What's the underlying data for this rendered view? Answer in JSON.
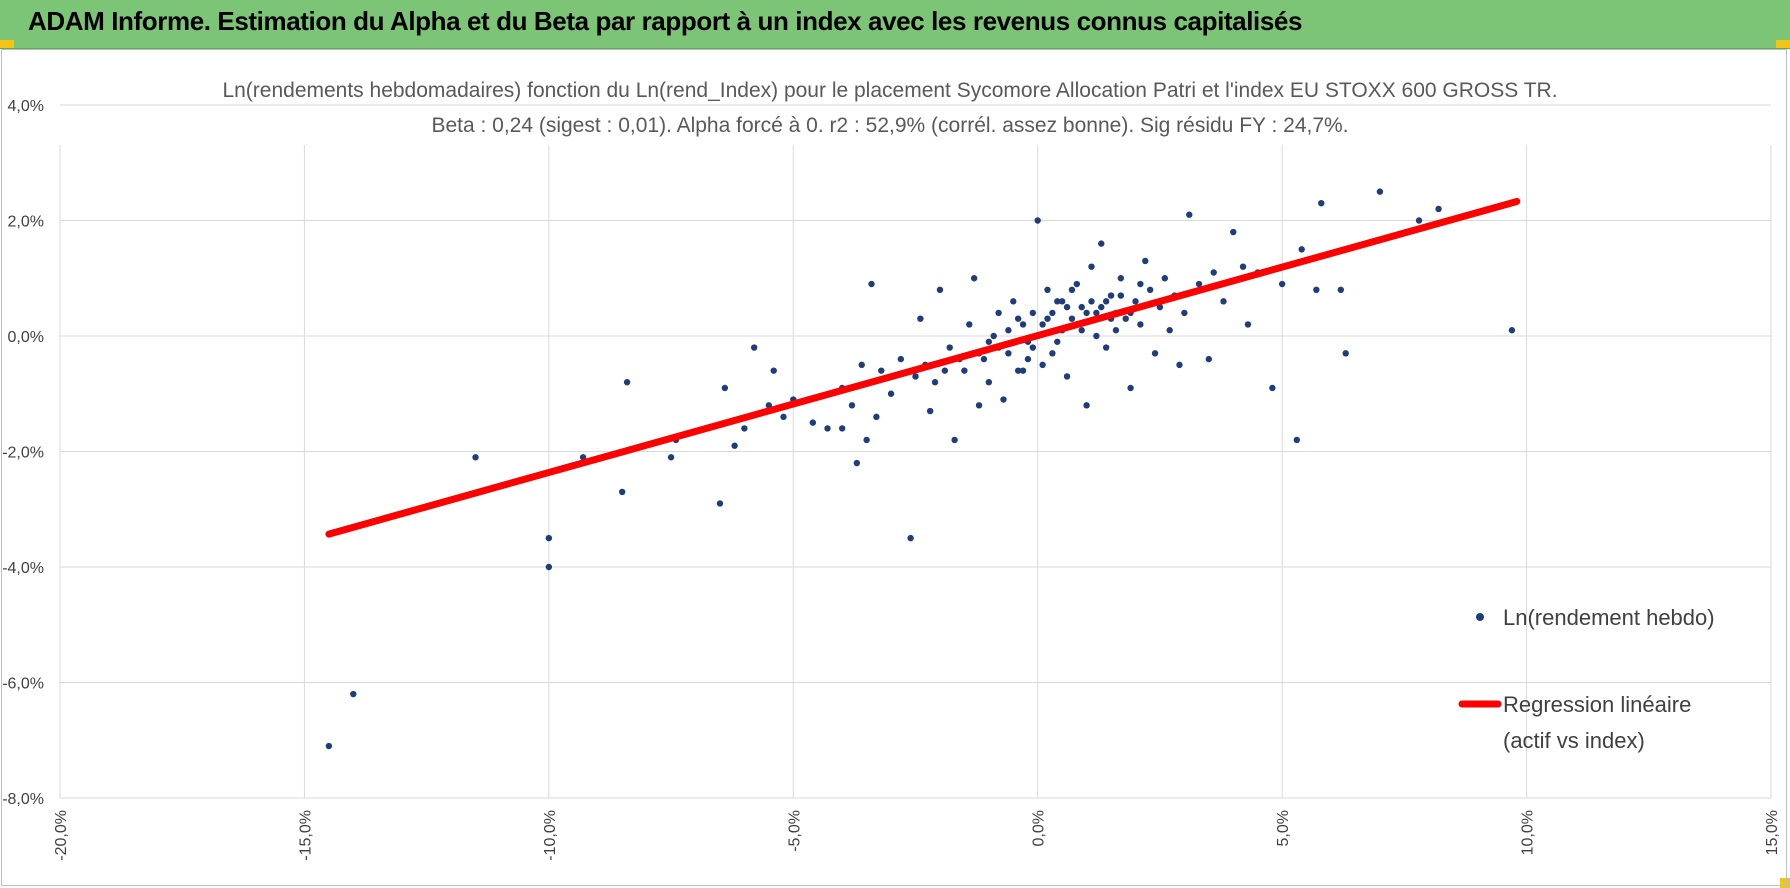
{
  "header": {
    "title": "ADAM Informe. Estimation du Alpha et du Beta par rapport à un index avec les revenus connus capitalisés"
  },
  "colors": {
    "banner": "#7cc576",
    "accent": "#f2c416",
    "points": "#1f3d7a",
    "regression": "#ff0000",
    "grid": "#d9d9d9"
  },
  "chart_data": {
    "type": "scatter",
    "title_line1": "Ln(rendements hebdomadaires) fonction du Ln(rend_Index) pour le placement Sycomore Allocation Patri et l'index EU STOXX 600 GROSS TR.",
    "title_line2": "Beta : 0,24 (sigest : 0,01). Alpha forcé à 0. r2 : 52,9% (corrél. assez bonne). Sig résidu FY : 24,7%.",
    "xlim": [
      -0.2,
      0.15
    ],
    "ylim": [
      -0.08,
      0.04
    ],
    "grid": "both",
    "legend_position": "right",
    "x_ticks": [
      "-20,0%",
      "-15,0%",
      "-10,0%",
      "-5,0%",
      "0,0%",
      "5,0%",
      "10,0%",
      "15,0%"
    ],
    "y_ticks": [
      "4,0%",
      "2,0%",
      "0,0%",
      "-2,0%",
      "-4,0%",
      "-6,0%",
      "-8,0%"
    ],
    "series": [
      {
        "name": "Ln(rendement hebdo)",
        "kind": "scatter",
        "points": [
          [
            -0.145,
            -0.071
          ],
          [
            -0.14,
            -0.062
          ],
          [
            -0.115,
            -0.021
          ],
          [
            -0.1,
            -0.035
          ],
          [
            -0.1,
            -0.04
          ],
          [
            -0.093,
            -0.021
          ],
          [
            -0.085,
            -0.027
          ],
          [
            -0.084,
            -0.008
          ],
          [
            -0.075,
            -0.021
          ],
          [
            -0.074,
            -0.018
          ],
          [
            -0.065,
            -0.029
          ],
          [
            -0.064,
            -0.009
          ],
          [
            -0.062,
            -0.019
          ],
          [
            -0.06,
            -0.016
          ],
          [
            -0.058,
            -0.002
          ],
          [
            -0.055,
            -0.012
          ],
          [
            -0.054,
            -0.006
          ],
          [
            -0.052,
            -0.014
          ],
          [
            -0.05,
            -0.011
          ],
          [
            -0.046,
            -0.015
          ],
          [
            -0.043,
            -0.016
          ],
          [
            -0.04,
            -0.016
          ],
          [
            -0.04,
            -0.009
          ],
          [
            -0.038,
            -0.012
          ],
          [
            -0.037,
            -0.022
          ],
          [
            -0.036,
            -0.005
          ],
          [
            -0.035,
            -0.018
          ],
          [
            -0.034,
            0.009
          ],
          [
            -0.033,
            -0.014
          ],
          [
            -0.032,
            -0.006
          ],
          [
            -0.03,
            -0.01
          ],
          [
            -0.028,
            -0.004
          ],
          [
            -0.026,
            -0.035
          ],
          [
            -0.025,
            -0.007
          ],
          [
            -0.024,
            0.003
          ],
          [
            -0.022,
            -0.013
          ],
          [
            -0.021,
            -0.008
          ],
          [
            -0.02,
            0.008
          ],
          [
            -0.018,
            -0.002
          ],
          [
            -0.017,
            -0.018
          ],
          [
            -0.015,
            -0.006
          ],
          [
            -0.014,
            0.002
          ],
          [
            -0.013,
            0.01
          ],
          [
            -0.012,
            -0.012
          ],
          [
            -0.011,
            -0.004
          ],
          [
            -0.01,
            -0.008
          ],
          [
            -0.009,
            0.0
          ],
          [
            -0.008,
            0.004
          ],
          [
            -0.007,
            -0.011
          ],
          [
            -0.006,
            -0.003
          ],
          [
            -0.005,
            0.006
          ],
          [
            -0.004,
            -0.006
          ],
          [
            -0.003,
            0.002
          ],
          [
            -0.002,
            -0.001
          ],
          [
            -0.001,
            0.004
          ],
          [
            0.0,
            0.0
          ],
          [
            0.0,
            0.02
          ],
          [
            0.001,
            -0.005
          ],
          [
            0.002,
            0.003
          ],
          [
            0.003,
            -0.003
          ],
          [
            0.004,
            0.006
          ],
          [
            0.005,
            0.001
          ],
          [
            0.006,
            -0.007
          ],
          [
            0.007,
            0.008
          ],
          [
            0.008,
            0.002
          ],
          [
            0.009,
            0.005
          ],
          [
            0.01,
            -0.012
          ],
          [
            0.011,
            0.012
          ],
          [
            0.012,
            0.004
          ],
          [
            0.013,
            0.016
          ],
          [
            0.014,
            -0.002
          ],
          [
            0.015,
            0.007
          ],
          [
            0.016,
            0.001
          ],
          [
            0.017,
            0.01
          ],
          [
            0.018,
            0.003
          ],
          [
            0.019,
            -0.009
          ],
          [
            0.02,
            0.006
          ],
          [
            0.021,
            0.002
          ],
          [
            0.022,
            0.013
          ],
          [
            0.023,
            0.008
          ],
          [
            0.024,
            -0.003
          ],
          [
            0.025,
            0.005
          ],
          [
            0.026,
            0.01
          ],
          [
            0.027,
            0.001
          ],
          [
            0.028,
            0.007
          ],
          [
            0.029,
            -0.005
          ],
          [
            0.03,
            0.004
          ],
          [
            0.031,
            0.021
          ],
          [
            0.033,
            0.009
          ],
          [
            0.035,
            -0.004
          ],
          [
            0.036,
            0.011
          ],
          [
            0.038,
            0.006
          ],
          [
            0.04,
            0.018
          ],
          [
            0.042,
            0.012
          ],
          [
            0.043,
            0.002
          ],
          [
            0.045,
            0.011
          ],
          [
            0.048,
            -0.009
          ],
          [
            0.05,
            0.009
          ],
          [
            0.053,
            -0.018
          ],
          [
            0.054,
            0.015
          ],
          [
            0.057,
            0.008
          ],
          [
            0.058,
            0.023
          ],
          [
            0.062,
            0.008
          ],
          [
            0.063,
            -0.003
          ],
          [
            0.07,
            0.025
          ],
          [
            0.078,
            0.02
          ],
          [
            0.082,
            0.022
          ],
          [
            0.097,
            0.001
          ],
          [
            -0.008,
            -0.002
          ],
          [
            -0.006,
            0.001
          ],
          [
            -0.004,
            0.003
          ],
          [
            -0.002,
            -0.004
          ],
          [
            0.001,
            0.002
          ],
          [
            0.003,
            0.004
          ],
          [
            0.005,
            0.006
          ],
          [
            0.007,
            0.003
          ],
          [
            0.009,
            0.001
          ],
          [
            0.011,
            0.006
          ],
          [
            0.013,
            0.005
          ],
          [
            0.015,
            0.003
          ],
          [
            0.017,
            0.007
          ],
          [
            0.019,
            0.004
          ],
          [
            0.021,
            0.009
          ],
          [
            -0.012,
            -0.003
          ],
          [
            -0.01,
            -0.001
          ],
          [
            -0.016,
            -0.004
          ],
          [
            -0.019,
            -0.006
          ],
          [
            -0.023,
            -0.005
          ],
          [
            0.002,
            0.008
          ],
          [
            0.004,
            -0.001
          ],
          [
            0.006,
            0.005
          ],
          [
            0.008,
            0.009
          ],
          [
            0.01,
            0.004
          ],
          [
            -0.003,
            -0.006
          ],
          [
            -0.001,
            -0.002
          ],
          [
            0.012,
            0.0
          ],
          [
            0.014,
            0.006
          ],
          [
            0.016,
            0.004
          ]
        ]
      },
      {
        "name": "Regression linéaire (actif vs index)",
        "kind": "line",
        "x": [
          -0.145,
          0.098
        ],
        "y": [
          -0.0343,
          0.0233
        ]
      }
    ]
  },
  "legend": {
    "scatter_label": "Ln(rendement hebdo)",
    "line_label_1": "Regression linéaire",
    "line_label_2": "(actif vs index)"
  }
}
